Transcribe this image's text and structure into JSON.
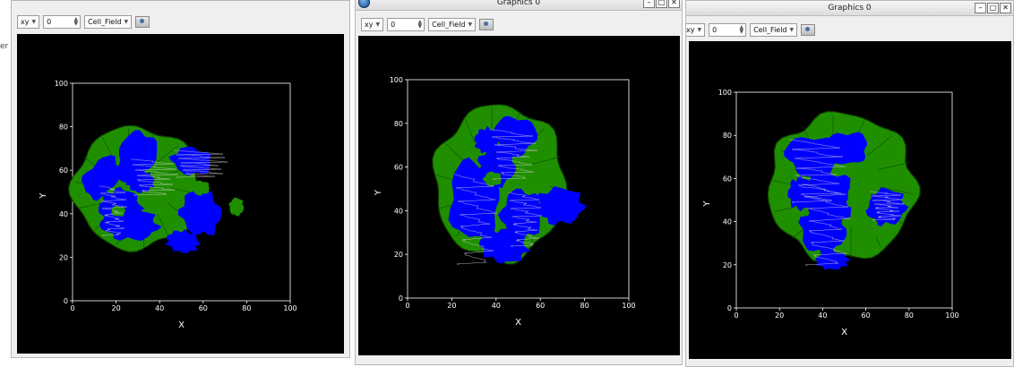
{
  "left_edge_text": "er",
  "windows": [
    {
      "title": "",
      "toolbar": {
        "plane": "xy",
        "slice": "0",
        "field": "Cell_Field"
      },
      "plot": {
        "xlabel": "X",
        "ylabel": "Y",
        "xticks": [
          "0",
          "20",
          "40",
          "60",
          "80",
          "100"
        ],
        "yticks": [
          "0",
          "20",
          "40",
          "60",
          "80",
          "100"
        ]
      }
    },
    {
      "title": "Graphics 0",
      "toolbar": {
        "plane": "xy",
        "slice": "0",
        "field": "Cell_Field"
      },
      "plot": {
        "xlabel": "X",
        "ylabel": "Y",
        "xticks": [
          "0",
          "20",
          "40",
          "60",
          "80",
          "100"
        ],
        "yticks": [
          "0",
          "20",
          "40",
          "60",
          "80",
          "100"
        ]
      }
    },
    {
      "title": "Graphics 0",
      "toolbar": {
        "plane": "xy",
        "slice": "0",
        "field": "Cell_Field"
      },
      "plot": {
        "xlabel": "X",
        "ylabel": "Y",
        "xticks": [
          "0",
          "20",
          "40",
          "60",
          "80",
          "100"
        ],
        "yticks": [
          "0",
          "20",
          "40",
          "60",
          "80",
          "100"
        ]
      }
    }
  ],
  "colors": {
    "canvas": "#000000",
    "axis": "#ffffff",
    "cell_green": "#1f8f00",
    "cell_blue": "#0000ff",
    "membrane": "#cfcfcf"
  },
  "icons": {
    "camera": "screenshot-camera-icon",
    "app": "app-icon"
  }
}
